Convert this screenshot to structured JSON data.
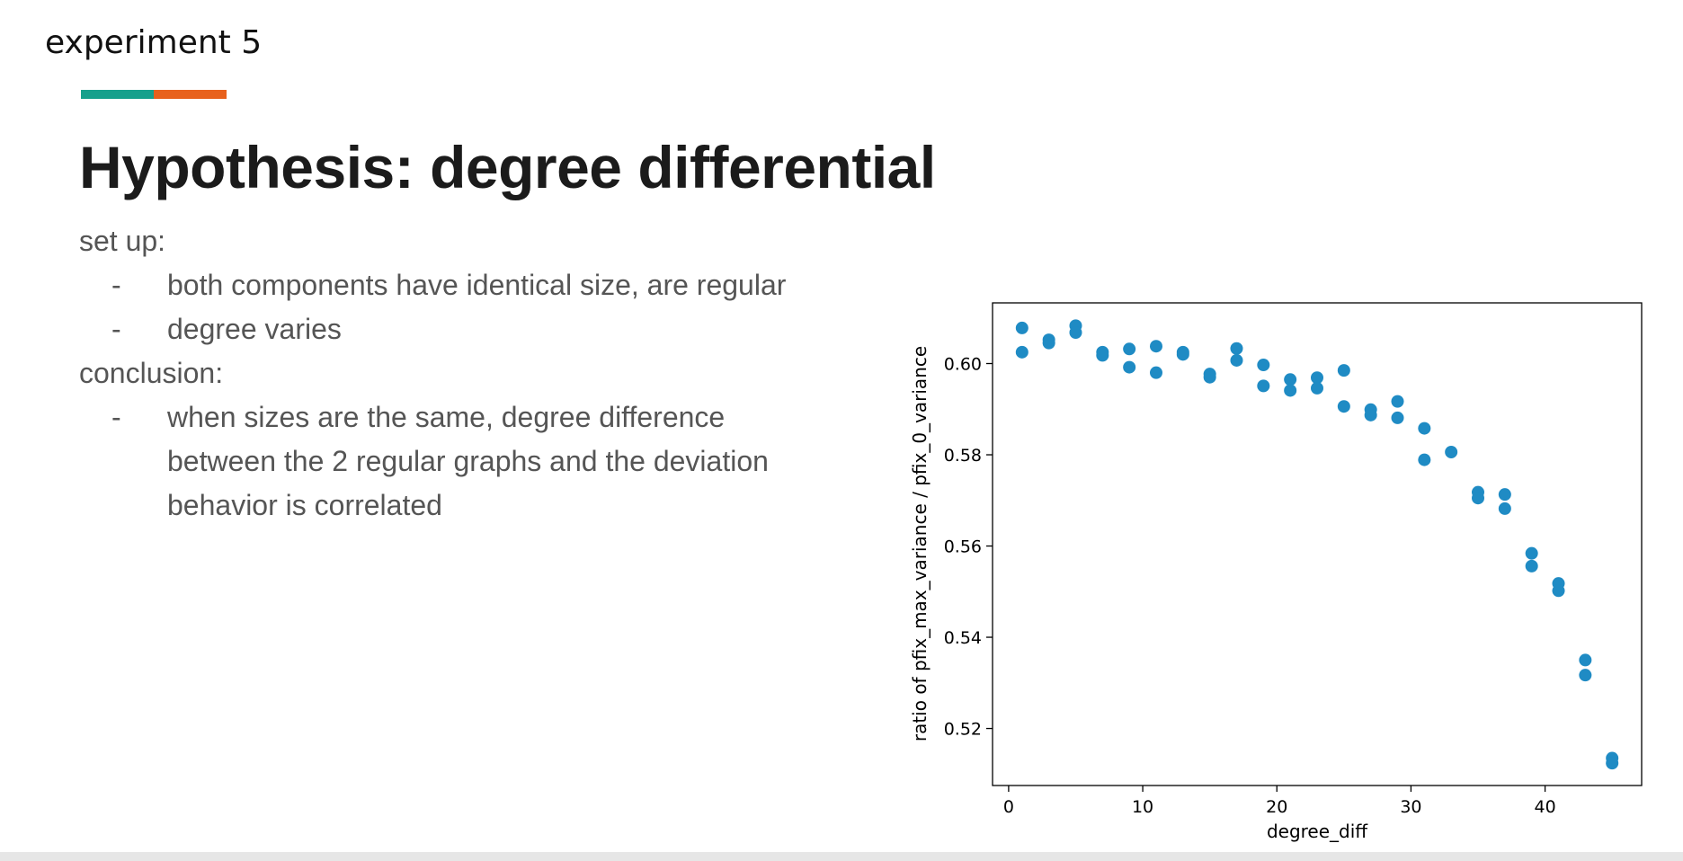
{
  "slide": {
    "label": "experiment 5",
    "accent_colors": [
      "#16a08c",
      "#e8611c"
    ],
    "title": "Hypothesis: degree differential",
    "setup_heading": "set up:",
    "setup_items": [
      "both components have identical size, are regular",
      "degree varies"
    ],
    "conclusion_heading": "conclusion:",
    "conclusion_items": [
      "when sizes are the same, degree difference between the 2 regular graphs and the deviation behavior is correlated"
    ],
    "bullet_marker": "-"
  },
  "chart_data": {
    "type": "scatter",
    "xlabel": "degree_diff",
    "ylabel": "ratio of pfix_max_variance / pfix_0_variance",
    "xlim": [
      -1.2,
      47.2
    ],
    "ylim": [
      0.5075,
      0.6133
    ],
    "xticks": [
      0,
      10,
      20,
      30,
      40
    ],
    "yticks": [
      0.52,
      0.54,
      0.56,
      0.58,
      0.6
    ],
    "ytick_labels": [
      "0.52",
      "0.54",
      "0.56",
      "0.58",
      "0.60"
    ],
    "grid": false,
    "marker_color": "#1f8bc4",
    "points": [
      [
        1,
        0.6078
      ],
      [
        1,
        0.6025
      ],
      [
        3,
        0.6052
      ],
      [
        3,
        0.6045
      ],
      [
        5,
        0.6083
      ],
      [
        5,
        0.6068
      ],
      [
        7,
        0.6025
      ],
      [
        7,
        0.6018
      ],
      [
        9,
        0.6032
      ],
      [
        9,
        0.5992
      ],
      [
        11,
        0.6038
      ],
      [
        11,
        0.598
      ],
      [
        13,
        0.6025
      ],
      [
        13,
        0.602
      ],
      [
        15,
        0.5977
      ],
      [
        15,
        0.597
      ],
      [
        17,
        0.6033
      ],
      [
        17,
        0.6007
      ],
      [
        19,
        0.5997
      ],
      [
        19,
        0.5951
      ],
      [
        21,
        0.5965
      ],
      [
        21,
        0.5941
      ],
      [
        23,
        0.5969
      ],
      [
        23,
        0.5946
      ],
      [
        25,
        0.5985
      ],
      [
        25,
        0.5906
      ],
      [
        27,
        0.5899
      ],
      [
        27,
        0.5887
      ],
      [
        29,
        0.5917
      ],
      [
        29,
        0.5881
      ],
      [
        31,
        0.5858
      ],
      [
        31,
        0.5789
      ],
      [
        33,
        0.5806
      ],
      [
        35,
        0.5718
      ],
      [
        35,
        0.5705
      ],
      [
        37,
        0.5713
      ],
      [
        37,
        0.5682
      ],
      [
        39,
        0.5584
      ],
      [
        39,
        0.5556
      ],
      [
        41,
        0.5518
      ],
      [
        41,
        0.5502
      ],
      [
        43,
        0.535
      ],
      [
        43,
        0.5317
      ],
      [
        45,
        0.5135
      ],
      [
        45,
        0.5124
      ]
    ]
  }
}
